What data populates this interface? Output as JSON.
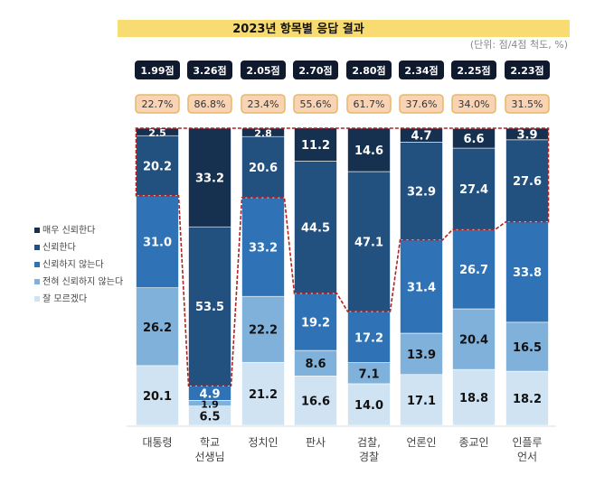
{
  "chart_data": {
    "type": "bar",
    "stacked": true,
    "title": "2023년 항목별 응답 결과",
    "unit_note": "(단위: 점/4점 척도, %)",
    "categories": [
      "대통령",
      "학교\n선생님",
      "정치인",
      "판사",
      "검찰,\n경찰",
      "언론인",
      "종교인",
      "인플루\n언서"
    ],
    "scores": [
      "1.99점",
      "3.26점",
      "2.05점",
      "2.70점",
      "2.80점",
      "2.34점",
      "2.25점",
      "2.23점"
    ],
    "trust_percent": [
      "22.7%",
      "86.8%",
      "23.4%",
      "55.6%",
      "61.7%",
      "37.6%",
      "34.0%",
      "31.5%"
    ],
    "series": [
      {
        "name": "잘 모르겠다",
        "color": "#cfe3f3",
        "values": [
          20.1,
          6.5,
          21.2,
          16.6,
          14.0,
          17.1,
          18.8,
          18.2
        ]
      },
      {
        "name": "전혀 신뢰하지 않는다",
        "color": "#7fb1db",
        "values": [
          26.2,
          1.9,
          22.2,
          8.6,
          7.1,
          13.9,
          20.4,
          16.5
        ]
      },
      {
        "name": "신뢰하지 않는다",
        "color": "#2f73b6",
        "values": [
          31.0,
          4.9,
          33.2,
          19.2,
          17.2,
          31.4,
          26.7,
          33.8
        ]
      },
      {
        "name": "신뢰한다",
        "color": "#22507f",
        "values": [
          20.2,
          53.5,
          20.6,
          44.5,
          47.1,
          32.9,
          27.4,
          27.6
        ]
      },
      {
        "name": "매우 신뢰한다",
        "color": "#16304f",
        "values": [
          2.5,
          33.2,
          2.8,
          11.2,
          14.6,
          4.7,
          6.6,
          3.9
        ]
      }
    ],
    "legend_order": [
      4,
      3,
      2,
      1,
      0
    ],
    "legend_position": "left",
    "ylim": [
      0,
      100
    ],
    "title_bg": "#f8dc72",
    "highlight_line_color": "#b22222"
  }
}
